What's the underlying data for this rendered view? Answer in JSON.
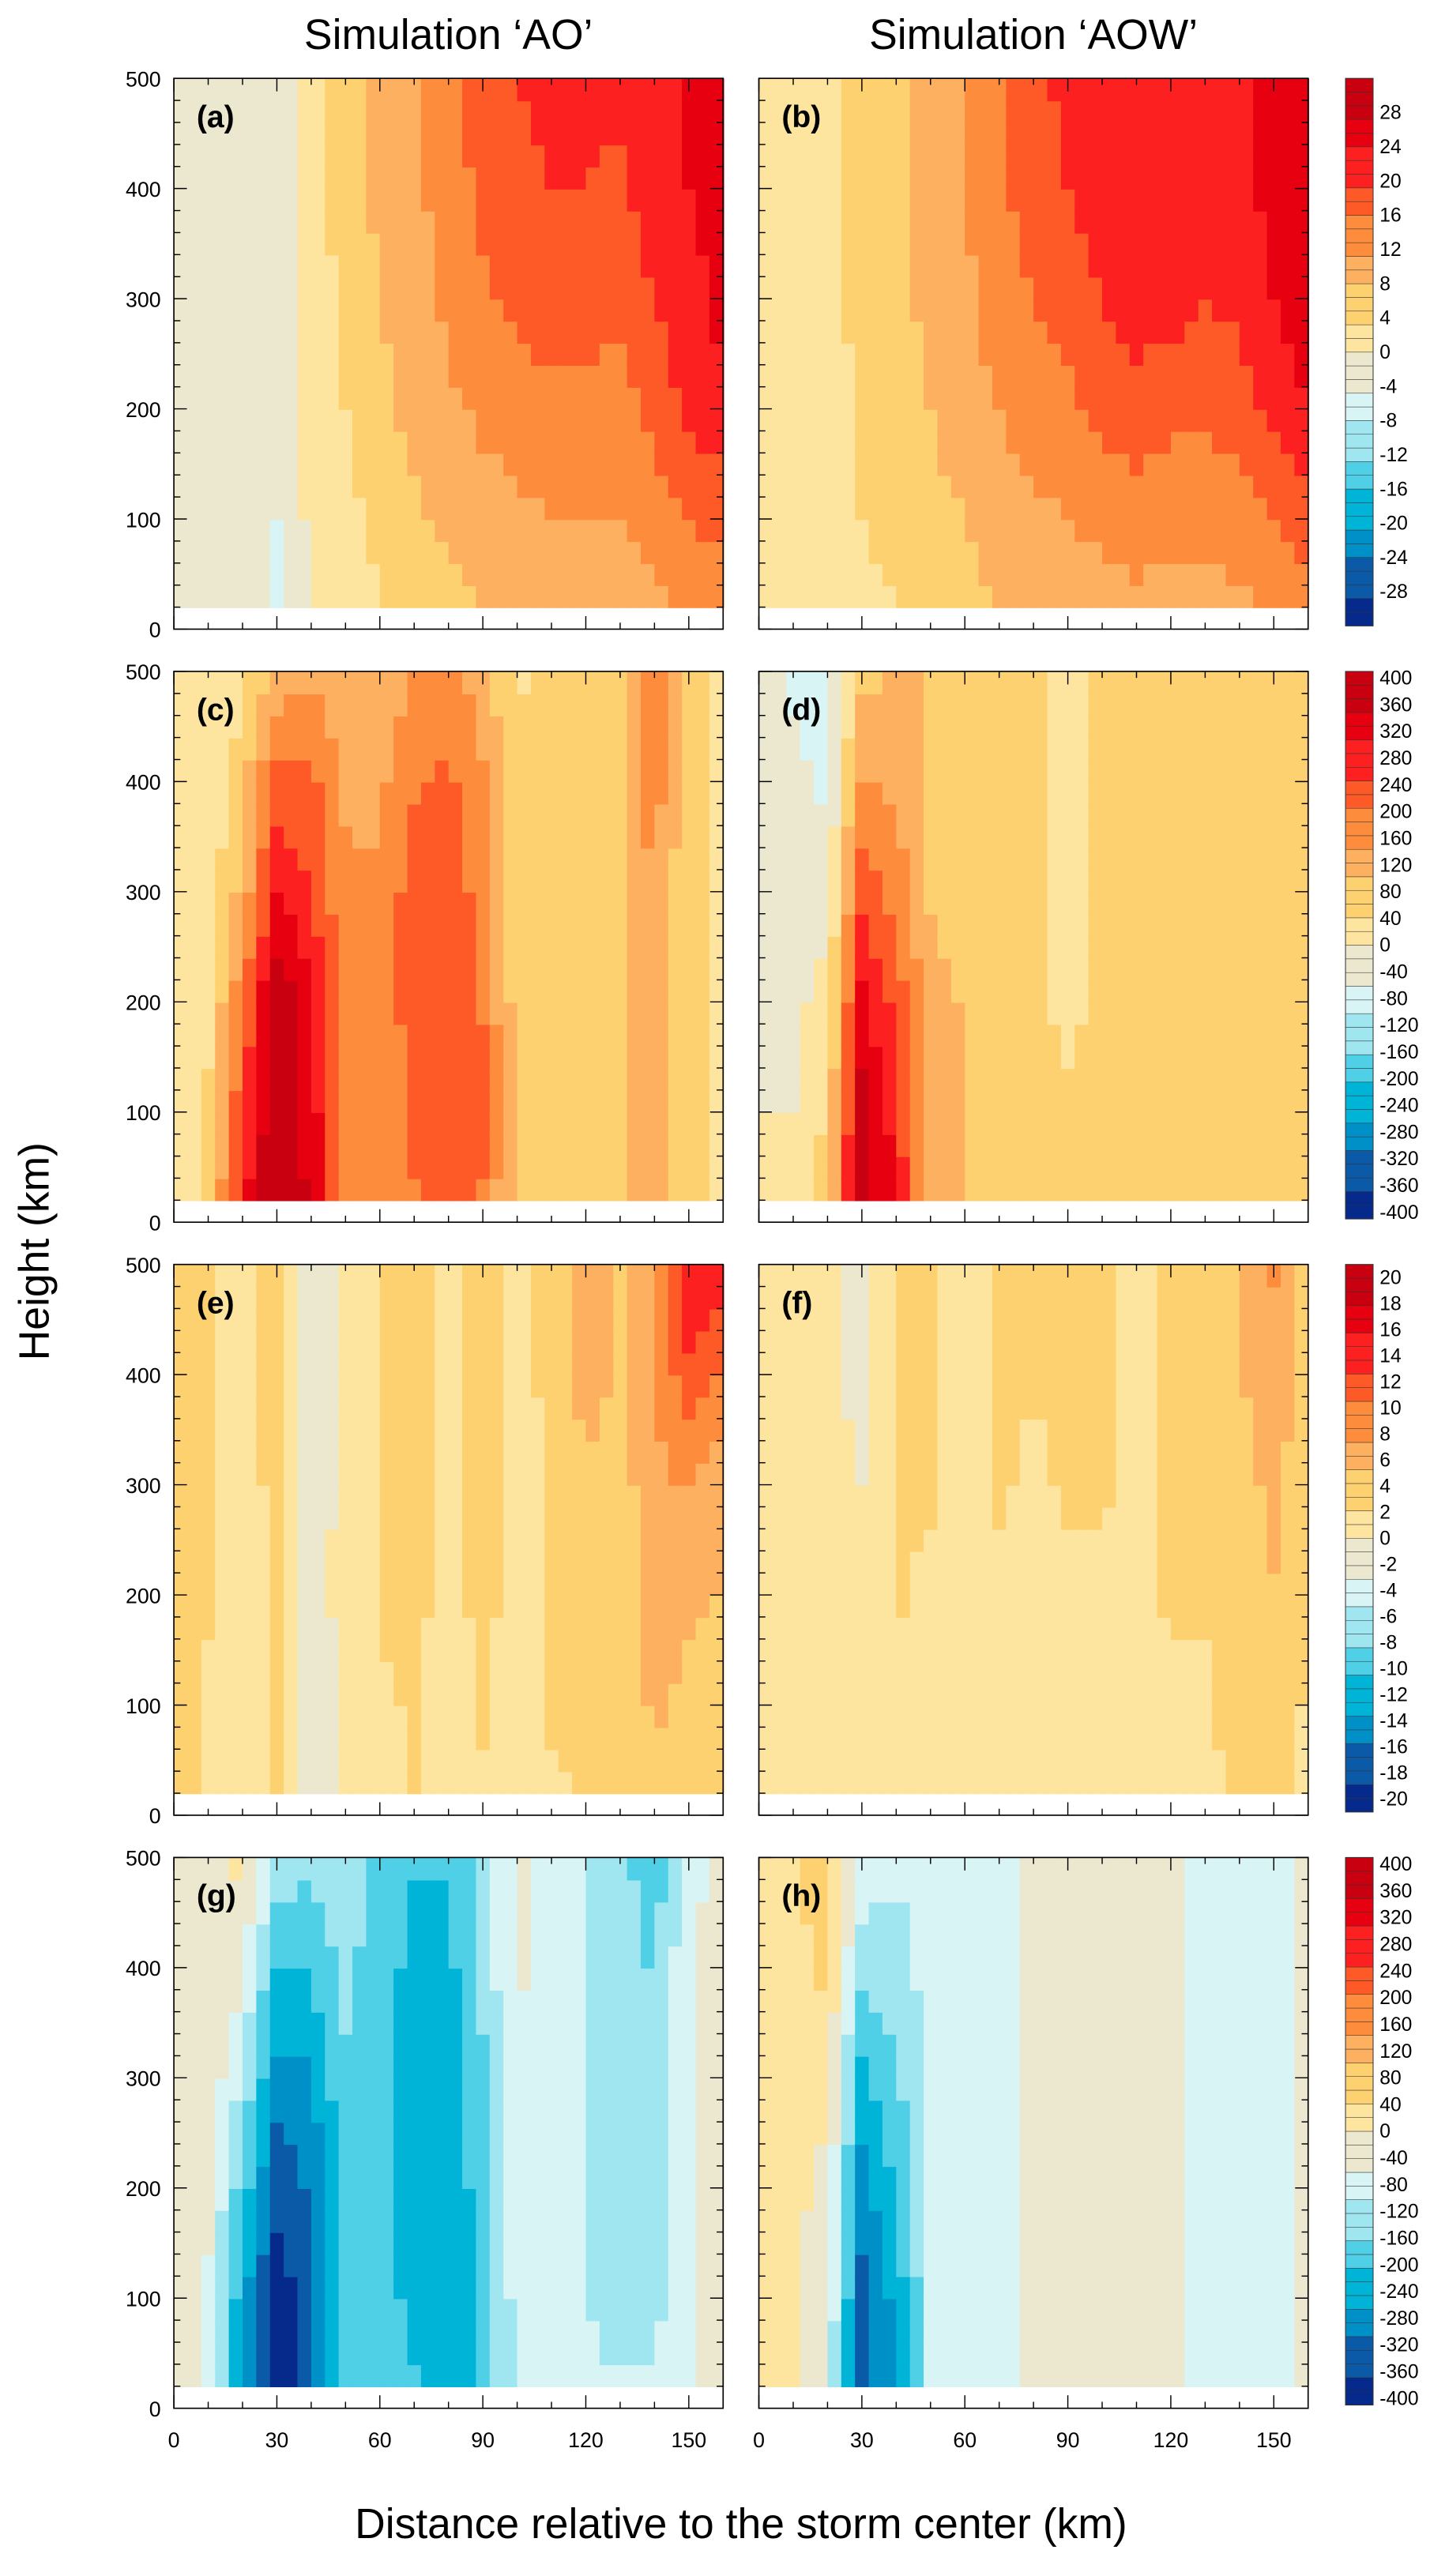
{
  "titles": {
    "left": "Simulation ‘AO’",
    "right": "Simulation ‘AOW’"
  },
  "ylabel": "Height (km)",
  "xlabel": "Distance relative to the storm center (km)",
  "colors": [
    "#062a8c",
    "#0a5aa8",
    "#0090c8",
    "#00b4d8",
    "#50d0e6",
    "#a0e6f0",
    "#d8f4f4",
    "#ece8d0",
    "#fde5a0",
    "#fdd070",
    "#fdb060",
    "#fd8c3c",
    "#fd5a28",
    "#fc2020",
    "#e60010",
    "#c80010"
  ],
  "chart_data": {
    "type": "heatmap",
    "x": [
      0,
      10,
      20,
      30,
      40,
      50,
      60,
      70,
      80,
      90,
      100,
      110,
      120,
      130,
      140,
      150,
      160
    ],
    "y": [
      20,
      100,
      200,
      300,
      400,
      500
    ],
    "xlim": [
      0,
      160
    ],
    "ylim": [
      0,
      500
    ],
    "xticks": [
      "0",
      "30",
      "60",
      "90",
      "120",
      "150"
    ],
    "yticks": [
      "0",
      "100",
      "200",
      "300",
      "400",
      "500"
    ],
    "colorbars": [
      {
        "range": [
          -32,
          32
        ],
        "ticks": [
          "28",
          "24",
          "20",
          "16",
          "12",
          "8",
          "4",
          "0",
          "-4",
          "-8",
          "-12",
          "-16",
          "-20",
          "-24",
          "-28"
        ],
        "tick_values": [
          28,
          24,
          20,
          16,
          12,
          8,
          4,
          0,
          -4,
          -8,
          -12,
          -16,
          -20,
          -24,
          -28
        ]
      },
      {
        "range": [
          -410,
          410
        ],
        "ticks": [
          "400",
          "360",
          "320",
          "280",
          "240",
          "200",
          "160",
          "120",
          "80",
          "40",
          "0",
          "-40",
          "-80",
          "-120",
          "-160",
          "-200",
          "-240",
          "-280",
          "-320",
          "-360",
          "-400"
        ],
        "tick_values": [
          400,
          360,
          320,
          280,
          240,
          200,
          160,
          120,
          80,
          40,
          0,
          -40,
          -80,
          -120,
          -160,
          -200,
          -240,
          -280,
          -320,
          -360,
          -400
        ]
      },
      {
        "range": [
          -21,
          21
        ],
        "ticks": [
          "20",
          "18",
          "16",
          "14",
          "12",
          "10",
          "8",
          "6",
          "4",
          "2",
          "0",
          "-2",
          "-4",
          "-6",
          "-8",
          "-10",
          "-12",
          "-14",
          "-16",
          "-18",
          "-20"
        ],
        "tick_values": [
          20,
          18,
          16,
          14,
          12,
          10,
          8,
          6,
          4,
          2,
          0,
          -2,
          -4,
          -6,
          -8,
          -10,
          -12,
          -14,
          -16,
          -18,
          -20
        ]
      },
      {
        "range": [
          -410,
          410
        ],
        "ticks": [
          "400",
          "360",
          "320",
          "280",
          "240",
          "200",
          "160",
          "120",
          "80",
          "40",
          "0",
          "-40",
          "-80",
          "-120",
          "-160",
          "-200",
          "-240",
          "-280",
          "-320",
          "-360",
          "-400"
        ],
        "tick_values": [
          400,
          360,
          320,
          280,
          240,
          200,
          160,
          120,
          80,
          40,
          0,
          -40,
          -80,
          -120,
          -160,
          -200,
          -240,
          -280,
          -320,
          -360,
          -400
        ]
      }
    ],
    "panels": [
      {
        "label": "(a)",
        "row": 0,
        "col": 0,
        "z": [
          [
            0,
            -2,
            -2,
            -5,
            1,
            2,
            4,
            6,
            7,
            8,
            9,
            9,
            10,
            10,
            11,
            13,
            14
          ],
          [
            0,
            -2,
            -2,
            -4,
            1,
            3,
            5,
            7,
            9,
            10,
            11,
            12,
            12,
            12,
            14,
            16,
            17
          ],
          [
            0,
            -2,
            -2,
            -4,
            1,
            4,
            7,
            9,
            11,
            13,
            14,
            15,
            15,
            14,
            17,
            21,
            23
          ],
          [
            0,
            -2,
            -2,
            -4,
            2,
            5,
            8,
            10,
            13,
            15,
            17,
            18,
            18,
            17,
            20,
            23,
            25
          ],
          [
            0,
            -2,
            -2,
            -4,
            2,
            6,
            9,
            11,
            14,
            17,
            19,
            20,
            20,
            19,
            22,
            24,
            25
          ],
          [
            0,
            -2,
            -2,
            -4,
            2,
            6,
            9,
            12,
            15,
            18,
            20,
            21,
            21,
            21,
            22,
            24,
            26
          ]
        ]
      },
      {
        "label": "(b)",
        "row": 0,
        "col": 1,
        "z": [
          [
            1,
            1,
            2,
            3,
            4,
            6,
            7,
            8,
            9,
            10,
            10,
            11,
            11,
            11,
            11,
            12,
            14
          ],
          [
            1,
            1,
            2,
            4,
            5,
            7,
            8,
            10,
            11,
            12,
            13,
            14,
            13,
            13,
            14,
            16,
            19
          ],
          [
            1,
            1,
            3,
            4,
            6,
            8,
            10,
            12,
            14,
            15,
            17,
            18,
            17,
            17,
            18,
            21,
            24
          ],
          [
            1,
            1,
            3,
            5,
            7,
            9,
            11,
            14,
            16,
            18,
            20,
            22,
            22,
            20,
            21,
            24,
            26
          ],
          [
            1,
            1,
            3,
            5,
            7,
            9,
            12,
            15,
            18,
            20,
            22,
            23,
            24,
            22,
            23,
            25,
            27
          ],
          [
            1,
            1,
            3,
            5,
            7,
            9,
            12,
            16,
            19,
            21,
            22,
            24,
            24,
            22,
            23,
            25,
            27
          ]
        ]
      },
      {
        "label": "(c)",
        "row": 1,
        "col": 0,
        "z": [
          [
            0,
            80,
            280,
            440,
            340,
            180,
            160,
            200,
            220,
            200,
            80,
            80,
            80,
            100,
            120,
            60,
            40
          ],
          [
            0,
            60,
            260,
            420,
            340,
            180,
            160,
            220,
            240,
            220,
            80,
            80,
            80,
            100,
            140,
            60,
            40
          ],
          [
            0,
            40,
            200,
            400,
            320,
            180,
            160,
            240,
            240,
            200,
            80,
            80,
            80,
            100,
            140,
            60,
            40
          ],
          [
            0,
            20,
            120,
            300,
            260,
            160,
            160,
            240,
            240,
            180,
            60,
            80,
            80,
            100,
            160,
            60,
            40
          ],
          [
            0,
            10,
            80,
            220,
            220,
            150,
            140,
            200,
            220,
            160,
            60,
            80,
            80,
            100,
            180,
            60,
            40
          ],
          [
            0,
            10,
            40,
            120,
            140,
            100,
            120,
            160,
            180,
            120,
            40,
            80,
            80,
            100,
            180,
            60,
            40
          ]
        ]
      },
      {
        "label": "(d)",
        "row": 1,
        "col": 1,
        "z": [
          [
            0,
            10,
            80,
            400,
            300,
            120,
            100,
            80,
            60,
            60,
            60,
            80,
            80,
            60,
            60,
            60,
            60
          ],
          [
            0,
            0,
            60,
            380,
            280,
            120,
            100,
            80,
            60,
            60,
            60,
            80,
            80,
            60,
            60,
            60,
            60
          ],
          [
            0,
            -10,
            20,
            320,
            240,
            120,
            100,
            80,
            60,
            40,
            60,
            80,
            80,
            60,
            60,
            60,
            60
          ],
          [
            0,
            -20,
            -20,
            240,
            180,
            100,
            80,
            80,
            60,
            40,
            60,
            80,
            80,
            60,
            60,
            60,
            60
          ],
          [
            0,
            -40,
            -60,
            160,
            140,
            100,
            80,
            80,
            60,
            40,
            60,
            80,
            80,
            60,
            60,
            60,
            60
          ],
          [
            0,
            -60,
            -80,
            80,
            120,
            100,
            80,
            80,
            60,
            40,
            60,
            80,
            80,
            60,
            60,
            60,
            60
          ]
        ]
      },
      {
        "label": "(e)",
        "row": 2,
        "col": 0,
        "z": [
          [
            4,
            2,
            2,
            3,
            -2,
            1,
            2,
            3,
            1,
            2,
            1,
            2,
            3,
            3,
            4,
            4,
            4
          ],
          [
            4,
            2,
            2,
            3,
            -3,
            1,
            2,
            3,
            1,
            3,
            1,
            3,
            4,
            3,
            6,
            4,
            4
          ],
          [
            4,
            3,
            2,
            3,
            -1,
            1,
            3,
            4,
            1,
            4,
            1,
            3,
            4,
            4,
            7,
            6,
            5
          ],
          [
            4,
            3,
            2,
            3,
            -2,
            1,
            3,
            4,
            1,
            5,
            1,
            3,
            5,
            4,
            7,
            8,
            6
          ],
          [
            4,
            3,
            2,
            4,
            -2,
            1,
            3,
            4,
            2,
            5,
            1,
            4,
            6,
            5,
            8,
            12,
            10
          ],
          [
            4,
            3,
            2,
            4,
            -2,
            1,
            3,
            4,
            2,
            5,
            1,
            4,
            6,
            5,
            8,
            16,
            14
          ]
        ]
      },
      {
        "label": "(f)",
        "row": 2,
        "col": 1,
        "z": [
          [
            1,
            1,
            1,
            1,
            2,
            2,
            2,
            2,
            2,
            2,
            2,
            2,
            2,
            2,
            3,
            4,
            2
          ],
          [
            1,
            1,
            1,
            1,
            2,
            2,
            2,
            2,
            2,
            2,
            2,
            2,
            2,
            2,
            4,
            5,
            2
          ],
          [
            1,
            2,
            1,
            1,
            3,
            2,
            2,
            2,
            2,
            2,
            2,
            2,
            3,
            3,
            4,
            5,
            3
          ],
          [
            1,
            2,
            1,
            0,
            3,
            3,
            2,
            3,
            2,
            3,
            3,
            2,
            3,
            3,
            4,
            6,
            3
          ],
          [
            1,
            2,
            1,
            -1,
            3,
            3,
            2,
            3,
            3,
            3,
            3,
            2,
            3,
            3,
            5,
            7,
            4
          ],
          [
            1,
            2,
            1,
            -1,
            3,
            3,
            2,
            3,
            3,
            3,
            3,
            2,
            3,
            3,
            5,
            8,
            4
          ]
        ]
      },
      {
        "label": "(g)",
        "row": 3,
        "col": 0,
        "z": [
          [
            0,
            -80,
            -260,
            -420,
            -320,
            -180,
            -180,
            -200,
            -220,
            -200,
            -80,
            -80,
            -100,
            -100,
            -100,
            -60,
            -20
          ],
          [
            0,
            -60,
            -240,
            -400,
            -320,
            -180,
            -180,
            -220,
            -240,
            -200,
            -80,
            -80,
            -100,
            -120,
            -120,
            -60,
            -20
          ],
          [
            0,
            -40,
            -180,
            -340,
            -300,
            -180,
            -180,
            -240,
            -240,
            -180,
            -60,
            -80,
            -100,
            -120,
            -140,
            -60,
            -20
          ],
          [
            0,
            -20,
            -100,
            -280,
            -260,
            -160,
            -180,
            -240,
            -240,
            -160,
            -60,
            -80,
            -100,
            -120,
            -140,
            -60,
            -20
          ],
          [
            0,
            -10,
            -40,
            -200,
            -200,
            -140,
            -180,
            -220,
            -220,
            -140,
            -40,
            -80,
            -100,
            -120,
            -160,
            -60,
            -20
          ],
          [
            0,
            -10,
            20,
            -120,
            -140,
            -120,
            -160,
            -200,
            -200,
            -120,
            -40,
            -80,
            -100,
            -140,
            -180,
            -80,
            -20
          ]
        ]
      },
      {
        "label": "(h)",
        "row": 3,
        "col": 1,
        "z": [
          [
            10,
            0,
            -60,
            -340,
            -260,
            -100,
            -80,
            -60,
            -40,
            -40,
            -40,
            -40,
            -40,
            -60,
            -60,
            -60,
            -40
          ],
          [
            10,
            10,
            -40,
            -320,
            -240,
            -100,
            -80,
            -60,
            -40,
            -40,
            -40,
            -40,
            -40,
            -60,
            -60,
            -60,
            -40
          ],
          [
            10,
            20,
            -20,
            -280,
            -200,
            -100,
            -80,
            -60,
            -40,
            -40,
            -40,
            -40,
            -40,
            -60,
            -60,
            -60,
            -40
          ],
          [
            10,
            30,
            20,
            -220,
            -160,
            -100,
            -80,
            -60,
            -40,
            -40,
            -40,
            -40,
            -40,
            -60,
            -60,
            -60,
            -40
          ],
          [
            10,
            40,
            60,
            -140,
            -120,
            -80,
            -60,
            -60,
            -40,
            -20,
            -20,
            -20,
            -40,
            -60,
            -60,
            -60,
            -40
          ],
          [
            20,
            40,
            80,
            -60,
            -100,
            -80,
            -60,
            -60,
            -40,
            -20,
            -10,
            -20,
            -40,
            -60,
            -60,
            -60,
            -40
          ]
        ]
      }
    ]
  }
}
